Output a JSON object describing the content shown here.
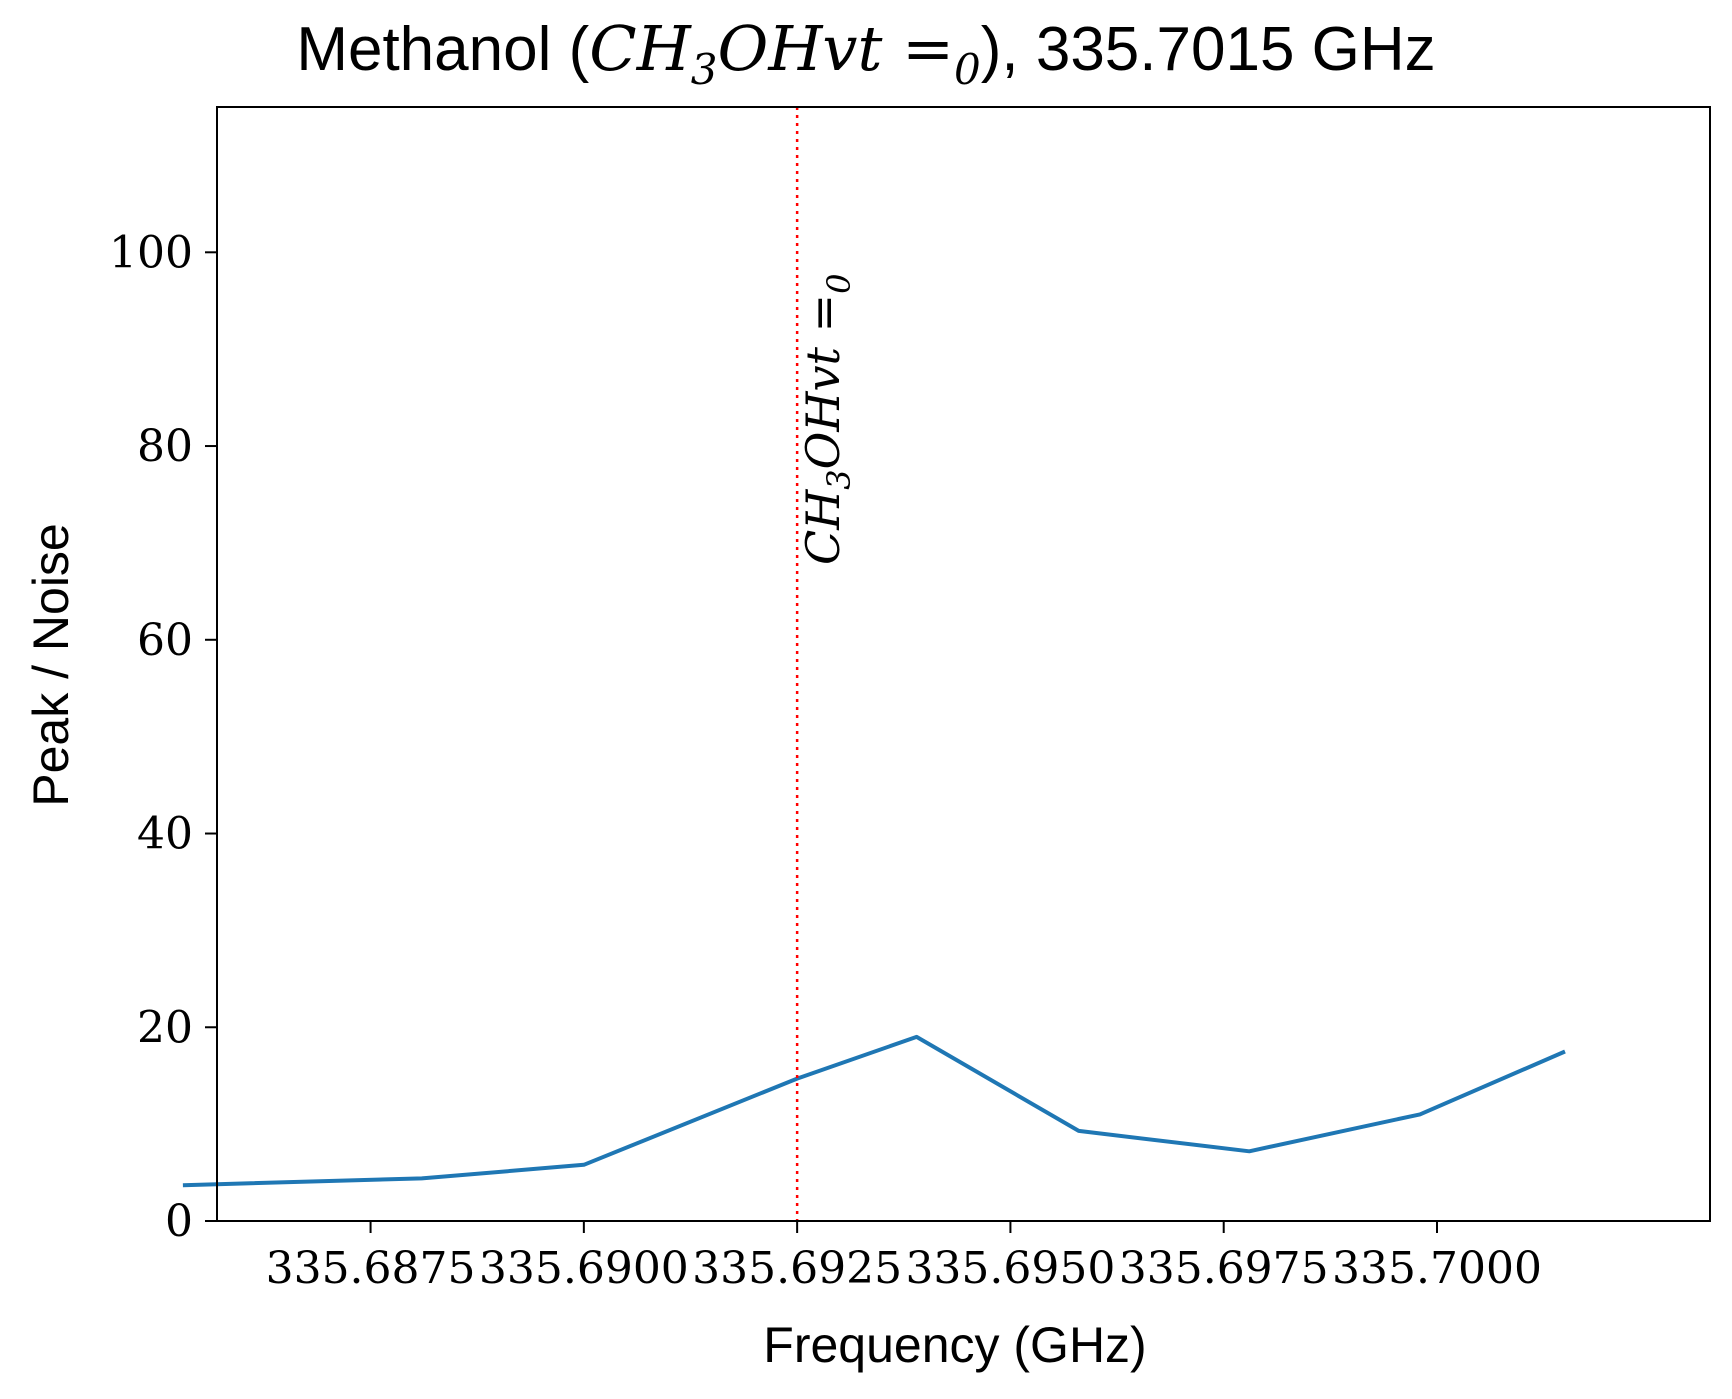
{
  "chart_data": {
    "type": "line",
    "title": {
      "prefix": "Methanol (",
      "molecule": "CH",
      "sub1": "3",
      "molecule_rest": "OHvt =",
      "sub2": "0",
      "suffix": "), 335.7015 GHz"
    },
    "xlabel": "Frequency (GHz)",
    "ylabel": "Peak / Noise",
    "xlim": [
      335.6857,
      335.7032
    ],
    "ylim": [
      0,
      115
    ],
    "x_ticks": [
      335.6875,
      335.69,
      335.6925,
      335.695,
      335.6975,
      335.7
    ],
    "x_tick_labels": [
      "335.6875",
      "335.6900",
      "335.6925",
      "335.6950",
      "335.6975",
      "335.7000"
    ],
    "y_ticks": [
      0,
      20,
      40,
      60,
      80,
      100
    ],
    "y_tick_labels": [
      "0",
      "20",
      "40",
      "60",
      "80",
      "100"
    ],
    "grid": false,
    "series": [
      {
        "color": "#1f77b4",
        "x": [
          335.6853,
          335.6881,
          335.69,
          335.6925,
          335.6939,
          335.6958,
          335.6978,
          335.6998,
          335.7015
        ],
        "y": [
          3.7,
          4.4,
          5.8,
          14.7,
          19.0,
          9.3,
          7.2,
          11.0,
          17.5
        ]
      }
    ],
    "annotations": [
      {
        "type": "vline",
        "x": 335.6925,
        "color": "#ff0000",
        "style": "dotted",
        "label": {
          "molecule": "CH",
          "sub1": "3",
          "molecule_rest": "OHvt =",
          "sub2": "0"
        }
      }
    ]
  }
}
